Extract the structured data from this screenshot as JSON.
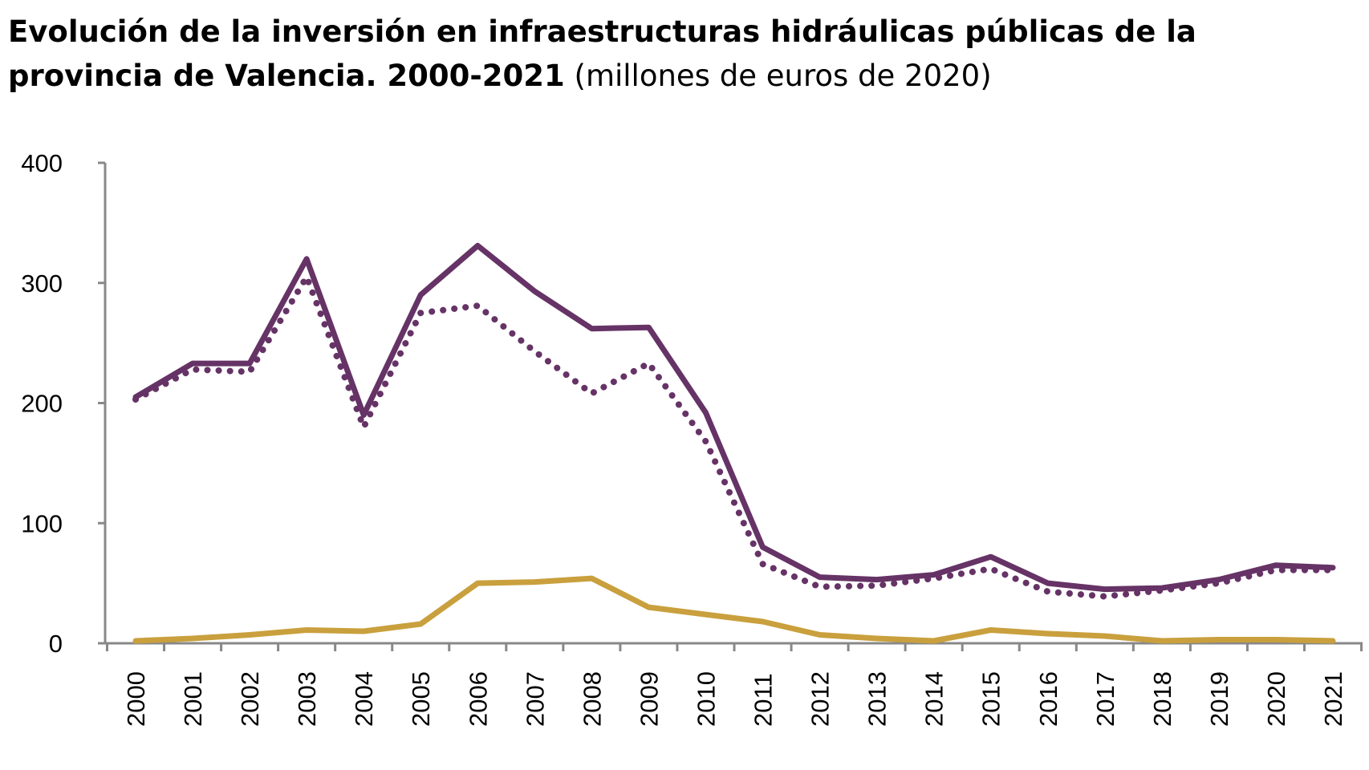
{
  "chart_data": {
    "type": "line",
    "title_line1": "Evolución de la inversión en infraestructuras hidráulicas públicas de la",
    "title_line2": "provincia de Valencia. 2000-2021",
    "subtitle": "(millones de euros de 2020)",
    "xlabel": "",
    "ylabel": "",
    "ylim": [
      0,
      400
    ],
    "yticks": [
      "0",
      "100",
      "200",
      "300",
      "400"
    ],
    "grid": false,
    "legend": "none",
    "categories": [
      "2000",
      "2001",
      "2002",
      "2003",
      "2004",
      "2005",
      "2006",
      "2007",
      "2008",
      "2009",
      "2010",
      "2011",
      "2012",
      "2013",
      "2014",
      "2015",
      "2016",
      "2017",
      "2018",
      "2019",
      "2020",
      "2021"
    ],
    "series": [
      {
        "style": "solid",
        "color": "#663366",
        "values": [
          205,
          233,
          233,
          320,
          190,
          290,
          331,
          293,
          262,
          263,
          192,
          80,
          55,
          53,
          57,
          72,
          50,
          45,
          46,
          53,
          65,
          63
        ]
      },
      {
        "style": "dotted",
        "color": "#663366",
        "values": [
          203,
          228,
          226,
          305,
          180,
          275,
          281,
          243,
          208,
          233,
          168,
          66,
          47,
          48,
          54,
          62,
          43,
          39,
          44,
          50,
          61,
          61
        ]
      },
      {
        "style": "solid",
        "color": "#C9A03D",
        "values": [
          2,
          4,
          7,
          11,
          10,
          16,
          50,
          51,
          54,
          30,
          24,
          18,
          7,
          4,
          2,
          11,
          8,
          6,
          2,
          3,
          3,
          2
        ]
      }
    ]
  }
}
